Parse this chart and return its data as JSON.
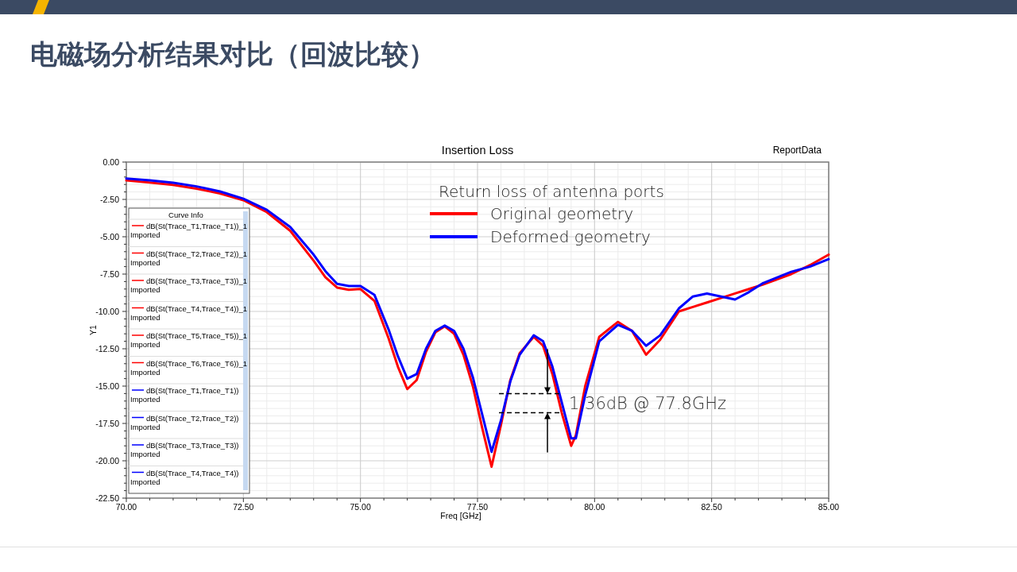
{
  "chart_data": {
    "type": "line",
    "title": "电磁场分析结果对比（回波比较）",
    "subtitle": "Insertion Loss",
    "xlabel": "Freq [GHz]",
    "ylabel": "Y1",
    "legend_title": "Return loss of antenna ports",
    "legend": "top",
    "grid": true,
    "line_style": "solid",
    "marker": "none",
    "x": [
      70,
      70.5,
      71,
      71.5,
      72,
      72.5,
      73,
      73.5,
      74,
      74.25,
      74.5,
      74.75,
      75,
      75.3,
      75.6,
      75.8,
      76,
      76.2,
      76.4,
      76.6,
      76.8,
      77,
      77.2,
      77.4,
      77.6,
      77.8,
      78,
      78.2,
      78.4,
      78.7,
      78.9,
      79.1,
      79.3,
      79.5,
      79.6,
      79.8,
      80.1,
      80.5,
      80.8,
      81.1,
      81.4,
      81.8,
      82.1,
      82.4,
      82.7,
      83,
      83.3,
      83.6,
      84.2,
      84.6,
      85
    ],
    "series": [
      {
        "name": "Original geometry",
        "color": "#ff0000",
        "values": [
          -1.23,
          -1.37,
          -1.53,
          -1.78,
          -2.1,
          -2.55,
          -3.35,
          -4.6,
          -6.6,
          -7.7,
          -8.4,
          -8.55,
          -8.5,
          -9.3,
          -11.8,
          -13.7,
          -15.2,
          -14.6,
          -12.7,
          -11.4,
          -11.0,
          -11.5,
          -12.9,
          -15.0,
          -17.8,
          -20.4,
          -17.6,
          -14.6,
          -12.8,
          -11.7,
          -12.3,
          -14.2,
          -16.8,
          -19.0,
          -18.3,
          -15.0,
          -11.7,
          -10.7,
          -11.3,
          -12.9,
          -11.9,
          -10.0,
          -9.7,
          -9.4,
          -9.1,
          -8.8,
          -8.5,
          -8.2,
          -7.5,
          -6.9,
          -6.2
        ]
      },
      {
        "name": "Deformed geometry",
        "color": "#0000ff",
        "values": [
          -1.1,
          -1.22,
          -1.38,
          -1.63,
          -1.97,
          -2.45,
          -3.2,
          -4.35,
          -6.2,
          -7.3,
          -8.15,
          -8.3,
          -8.3,
          -8.9,
          -11.2,
          -13.0,
          -14.5,
          -14.2,
          -12.5,
          -11.3,
          -10.95,
          -11.3,
          -12.5,
          -14.4,
          -16.9,
          -19.4,
          -17.3,
          -14.7,
          -12.9,
          -11.6,
          -12.0,
          -13.7,
          -16.1,
          -18.5,
          -18.5,
          -15.6,
          -12.0,
          -10.9,
          -11.3,
          -12.3,
          -11.6,
          -9.8,
          -9.0,
          -8.8,
          -9.0,
          -9.2,
          -8.7,
          -8.1,
          -7.35,
          -7.0,
          -6.5
        ]
      }
    ],
    "xlim": [
      70,
      85
    ],
    "xticks": [
      {
        "value": 70,
        "label": "70.00"
      },
      {
        "value": 72.5,
        "label": "72.50"
      },
      {
        "value": 75,
        "label": "75.00"
      },
      {
        "value": 77.5,
        "label": "77.50"
      },
      {
        "value": 80,
        "label": "80.00"
      },
      {
        "value": 82.5,
        "label": "82.50"
      },
      {
        "value": 85,
        "label": "85.00"
      }
    ],
    "ylim": [
      -22.5,
      0
    ],
    "yticks": [
      {
        "value": 0,
        "label": "0.00"
      },
      {
        "value": -2.5,
        "label": "-2.50"
      },
      {
        "value": -5,
        "label": "-5.00"
      },
      {
        "value": -7.5,
        "label": "-7.50"
      },
      {
        "value": -10,
        "label": "-10.00"
      },
      {
        "value": -12.5,
        "label": "-12.50"
      },
      {
        "value": -15,
        "label": "-15.00"
      },
      {
        "value": -17.5,
        "label": "-17.50"
      },
      {
        "value": -20,
        "label": "-20.00"
      },
      {
        "value": -22.5,
        "label": "-22.50"
      }
    ],
    "annotations": [
      "ReportData",
      {
        "text": "1.36dB  @ 77.8GHz",
        "x": 79.35,
        "y": -16.15
      },
      "Curve Info",
      "dB(St(Trace_T1,Trace_T1))_1 Imported",
      "dB(St(Trace_T2,Trace_T2))_1 Imported",
      "dB(St(Trace_T3,Trace_T3))_1 Imported",
      "dB(St(Trace_T4,Trace_T4))_1 Imported",
      "dB(St(Trace_T5,Trace_T5))_1 Imported",
      "dB(St(Trace_T6,Trace_T6))_1 Imported",
      "dB(St(Trace_T1,Trace_T1)) Imported",
      "dB(St(Trace_T2,Trace_T2)) Imported",
      "dB(St(Trace_T3,Trace_T3)) Imported",
      "dB(St(Trace_T4,Trace_T4)) Imported"
    ]
  }
}
